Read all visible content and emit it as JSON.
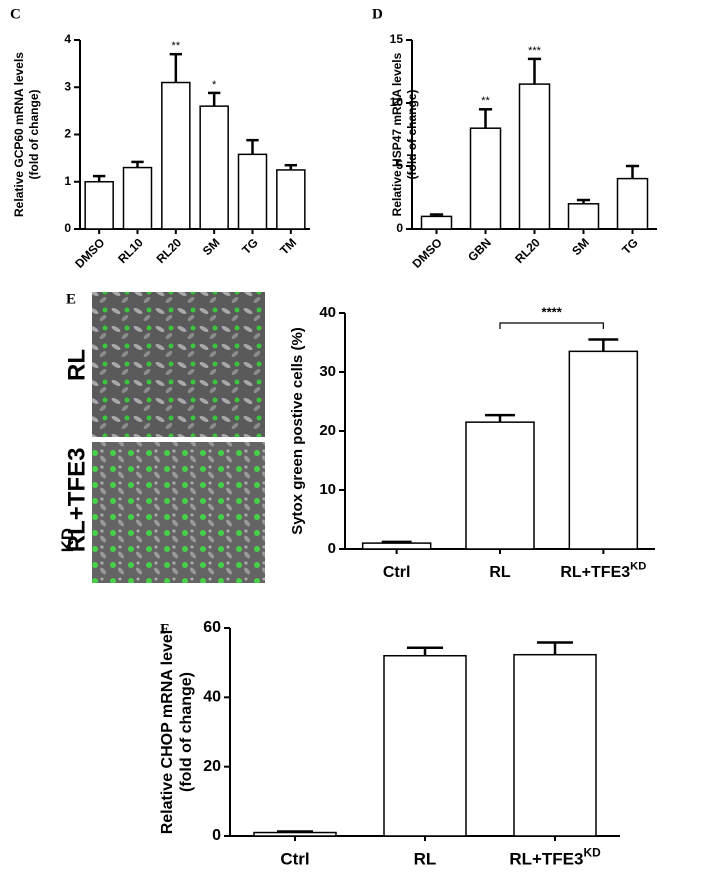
{
  "chart_data": [
    {
      "panel": "C",
      "type": "bar",
      "ylabel_lines": [
        "Relative GCP60 mRNA levels",
        "(fold of change)"
      ],
      "categories": [
        "DMSO",
        "RL10",
        "RL20",
        "SM",
        "TG",
        "TM"
      ],
      "values": [
        1.0,
        1.3,
        3.1,
        2.6,
        1.58,
        1.25
      ],
      "errors": [
        0.12,
        0.12,
        0.6,
        0.28,
        0.3,
        0.1
      ],
      "significance": [
        null,
        null,
        "**",
        "*",
        null,
        null
      ],
      "ylim": [
        0,
        4
      ],
      "yticks": [
        0,
        1,
        2,
        3,
        4
      ],
      "color": "#ffffff",
      "rotate_labels": true
    },
    {
      "panel": "D",
      "type": "bar",
      "ylabel_lines": [
        "Relative HSP47 mRNA levels",
        "(fold of change)"
      ],
      "categories": [
        "DMSO",
        "GBN",
        "RL20",
        "SM",
        "TG"
      ],
      "values": [
        1.0,
        8.0,
        11.5,
        2.0,
        4.0
      ],
      "errors": [
        0.15,
        1.5,
        2.0,
        0.3,
        1.0
      ],
      "significance": [
        null,
        "**",
        "***",
        null,
        null
      ],
      "ylim": [
        0,
        15
      ],
      "yticks": [
        0,
        5,
        10,
        15
      ],
      "color": "#ffffff",
      "rotate_labels": true
    },
    {
      "panel": "E",
      "type": "bar",
      "ylabel_lines": [
        "Sytox green postive cells (%)"
      ],
      "image_labels": [
        "RL",
        "RL+TFE3"
      ],
      "image_label_superscripts": [
        null,
        "KD"
      ],
      "categories": [
        "Ctrl",
        "RL",
        "RL+TFE3"
      ],
      "category_superscripts": [
        null,
        null,
        "KD"
      ],
      "values": [
        1.0,
        21.5,
        33.5
      ],
      "errors": [
        0.2,
        1.2,
        2.0
      ],
      "bracket_text": "****",
      "ylim": [
        0,
        40
      ],
      "yticks": [
        0,
        10,
        20,
        30,
        40
      ],
      "color": "#ffffff",
      "rotate_labels": false
    },
    {
      "panel": "F",
      "type": "bar",
      "ylabel_lines": [
        "Relative CHOP mRNA level",
        "(fold of change)"
      ],
      "categories": [
        "Ctrl",
        "RL",
        "RL+TFE3"
      ],
      "category_superscripts": [
        null,
        null,
        "KD"
      ],
      "values": [
        1.0,
        52.0,
        52.3
      ],
      "errors": [
        0.3,
        2.3,
        3.5
      ],
      "ylim": [
        0,
        60
      ],
      "yticks": [
        0,
        20,
        40,
        60
      ],
      "color": "#ffffff",
      "rotate_labels": false
    }
  ]
}
